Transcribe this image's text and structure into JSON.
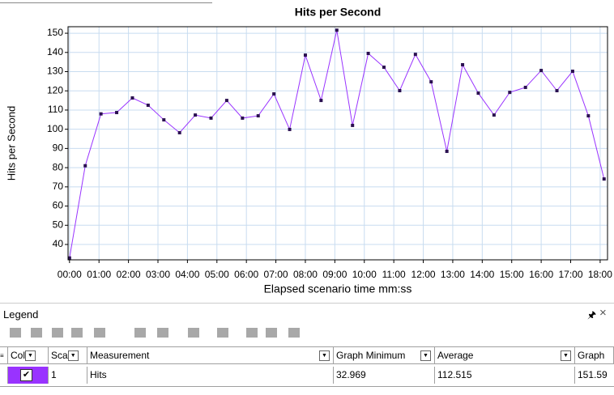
{
  "chart_data": {
    "type": "line",
    "title": "Hits per Second",
    "x_label": "Elapsed scenario time mm:ss",
    "y_label": "Hits per Second",
    "x": [
      0,
      32,
      64,
      96,
      128,
      160,
      192,
      224,
      256,
      288,
      320,
      352,
      384,
      416,
      448,
      480,
      512,
      544,
      576,
      608,
      640,
      672,
      704,
      736,
      768,
      800,
      832,
      864,
      896,
      928,
      960,
      992,
      1024,
      1056,
      1088
    ],
    "series": [
      {
        "name": "Hits",
        "color": "#9933ff",
        "values": [
          32.969,
          81,
          108,
          108.7,
          116.3,
          112.5,
          104.9,
          98.2,
          107.4,
          105.8,
          115,
          105.8,
          107,
          118.4,
          99.9,
          138.6,
          115,
          151.59,
          102,
          139.5,
          132.3,
          120.1,
          139,
          124.7,
          88.5,
          133.6,
          118.8,
          107.4,
          119.2,
          121.8,
          130.6,
          120.1,
          130.2,
          107,
          74.1
        ]
      }
    ],
    "xlim": [
      -3,
      1095
    ],
    "ylim": [
      32,
      153.4
    ],
    "xticks": [
      {
        "value": 0,
        "label": "00:00"
      },
      {
        "value": 60,
        "label": "01:00"
      },
      {
        "value": 120,
        "label": "02:00"
      },
      {
        "value": 180,
        "label": "03:00"
      },
      {
        "value": 240,
        "label": "04:00"
      },
      {
        "value": 300,
        "label": "05:00"
      },
      {
        "value": 360,
        "label": "06:00"
      },
      {
        "value": 420,
        "label": "07:00"
      },
      {
        "value": 480,
        "label": "08:00"
      },
      {
        "value": 540,
        "label": "09:00"
      },
      {
        "value": 600,
        "label": "10:00"
      },
      {
        "value": 660,
        "label": "11:00"
      },
      {
        "value": 720,
        "label": "12:00"
      },
      {
        "value": 780,
        "label": "13:00"
      },
      {
        "value": 840,
        "label": "14:00"
      },
      {
        "value": 900,
        "label": "15:00"
      },
      {
        "value": 960,
        "label": "16:00"
      },
      {
        "value": 1020,
        "label": "17:00"
      },
      {
        "value": 1080,
        "label": "18:00"
      }
    ],
    "yticks": [
      40,
      50,
      60,
      70,
      80,
      90,
      100,
      110,
      120,
      130,
      140,
      150
    ],
    "grid": true
  },
  "legend_panel": {
    "title": "Legend",
    "columns": [
      "Col",
      "Sca",
      "Measurement",
      "Graph Minimum",
      "Average",
      "Graph"
    ],
    "rows": [
      {
        "scale": 1,
        "minimum": 32.969,
        "average": 112.515,
        "maximum": 151.59
      }
    ]
  }
}
